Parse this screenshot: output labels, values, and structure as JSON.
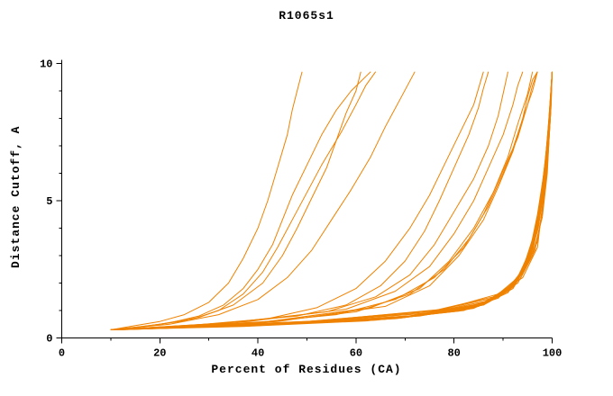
{
  "page": {
    "background": "#ffffff"
  },
  "chart_data": {
    "type": "line",
    "title": "R1065s1",
    "xlabel": "Percent of Residues (CA)",
    "ylabel": "Distance Cutoff, A",
    "xlim": [
      0,
      100
    ],
    "ylim": [
      0,
      10
    ],
    "x_major_ticks": [
      0,
      20,
      40,
      60,
      80,
      100
    ],
    "x_minor_ticks": [
      10,
      30,
      50,
      70,
      90
    ],
    "y_major_ticks": [
      0,
      5,
      10
    ],
    "y_minor_ticks": [
      1,
      2,
      3,
      4,
      6,
      7,
      8,
      9
    ],
    "grid": false,
    "legend": "none",
    "line_color": "#ef8200",
    "axis_color": "#000000",
    "series": [
      [
        [
          10,
          0.3
        ],
        [
          16,
          0.4
        ],
        [
          22,
          0.55
        ],
        [
          28,
          0.8
        ],
        [
          33,
          1.2
        ],
        [
          37,
          1.8
        ],
        [
          40,
          2.5
        ],
        [
          43,
          3.4
        ],
        [
          45,
          4.3
        ],
        [
          47,
          5.2
        ],
        [
          50,
          6.3
        ],
        [
          53,
          7.4
        ],
        [
          56,
          8.3
        ],
        [
          59,
          9.0
        ],
        [
          63,
          9.7
        ]
      ],
      [
        [
          10,
          0.3
        ],
        [
          18,
          0.45
        ],
        [
          26,
          0.65
        ],
        [
          32,
          1.0
        ],
        [
          37,
          1.6
        ],
        [
          41,
          2.4
        ],
        [
          44,
          3.3
        ],
        [
          47,
          4.3
        ],
        [
          50,
          5.3
        ],
        [
          53,
          6.3
        ],
        [
          57,
          7.5
        ],
        [
          60,
          8.5
        ],
        [
          62,
          9.2
        ],
        [
          64,
          9.7
        ]
      ],
      [
        [
          11,
          0.3
        ],
        [
          20,
          0.5
        ],
        [
          28,
          0.75
        ],
        [
          35,
          1.2
        ],
        [
          41,
          2.0
        ],
        [
          45,
          3.0
        ],
        [
          48,
          4.0
        ],
        [
          51,
          5.1
        ],
        [
          54,
          6.2
        ],
        [
          56,
          7.2
        ],
        [
          58,
          8.2
        ],
        [
          60,
          9.0
        ],
        [
          61,
          9.7
        ]
      ],
      [
        [
          10,
          0.3
        ],
        [
          22,
          0.5
        ],
        [
          32,
          0.85
        ],
        [
          40,
          1.4
        ],
        [
          46,
          2.2
        ],
        [
          51,
          3.2
        ],
        [
          55,
          4.3
        ],
        [
          59,
          5.4
        ],
        [
          63,
          6.6
        ],
        [
          66,
          7.7
        ],
        [
          69,
          8.7
        ],
        [
          72,
          9.7
        ]
      ],
      [
        [
          10,
          0.3
        ],
        [
          15,
          0.45
        ],
        [
          20,
          0.6
        ],
        [
          25,
          0.85
        ],
        [
          30,
          1.3
        ],
        [
          34,
          2.0
        ],
        [
          37,
          2.9
        ],
        [
          40,
          4.0
        ],
        [
          42,
          5.0
        ],
        [
          44,
          6.2
        ],
        [
          46,
          7.4
        ],
        [
          47,
          8.3
        ],
        [
          48,
          9.0
        ],
        [
          49,
          9.7
        ]
      ],
      [
        [
          10,
          0.3
        ],
        [
          30,
          0.5
        ],
        [
          48,
          0.8
        ],
        [
          58,
          1.2
        ],
        [
          65,
          1.9
        ],
        [
          70,
          2.8
        ],
        [
          74,
          3.9
        ],
        [
          77,
          5.0
        ],
        [
          80,
          6.2
        ],
        [
          83,
          7.4
        ],
        [
          85,
          8.4
        ],
        [
          86,
          9.1
        ],
        [
          87,
          9.7
        ]
      ],
      [
        [
          10,
          0.3
        ],
        [
          34,
          0.55
        ],
        [
          54,
          0.95
        ],
        [
          64,
          1.5
        ],
        [
          71,
          2.3
        ],
        [
          76,
          3.4
        ],
        [
          80,
          4.6
        ],
        [
          84,
          5.8
        ],
        [
          87,
          7.0
        ],
        [
          89,
          8.1
        ],
        [
          90,
          8.9
        ],
        [
          91,
          9.7
        ]
      ],
      [
        [
          11,
          0.3
        ],
        [
          38,
          0.6
        ],
        [
          58,
          1.05
        ],
        [
          68,
          1.7
        ],
        [
          75,
          2.6
        ],
        [
          80,
          3.8
        ],
        [
          84,
          5.0
        ],
        [
          87,
          6.2
        ],
        [
          90,
          7.4
        ],
        [
          92,
          8.5
        ],
        [
          93,
          9.2
        ],
        [
          94,
          9.7
        ]
      ],
      [
        [
          10,
          0.3
        ],
        [
          42,
          0.6
        ],
        [
          63,
          1.1
        ],
        [
          73,
          1.8
        ],
        [
          79,
          2.8
        ],
        [
          84,
          4.0
        ],
        [
          88,
          5.3
        ],
        [
          91,
          6.6
        ],
        [
          93,
          7.8
        ],
        [
          95,
          8.9
        ],
        [
          96,
          9.7
        ]
      ],
      [
        [
          12,
          0.3
        ],
        [
          40,
          0.55
        ],
        [
          60,
          0.95
        ],
        [
          71,
          1.6
        ],
        [
          78,
          2.5
        ],
        [
          83,
          3.6
        ],
        [
          87,
          4.8
        ],
        [
          90,
          6.0
        ],
        [
          93,
          7.3
        ],
        [
          95,
          8.5
        ],
        [
          96,
          9.2
        ],
        [
          97,
          9.7
        ]
      ],
      [
        [
          10,
          0.3
        ],
        [
          36,
          0.5
        ],
        [
          56,
          0.85
        ],
        [
          68,
          1.4
        ],
        [
          76,
          2.2
        ],
        [
          82,
          3.3
        ],
        [
          86,
          4.5
        ],
        [
          89,
          5.7
        ],
        [
          92,
          6.9
        ],
        [
          94,
          8.0
        ],
        [
          96,
          9.0
        ],
        [
          97,
          9.7
        ]
      ],
      [
        [
          10,
          0.3
        ],
        [
          26,
          0.45
        ],
        [
          42,
          0.7
        ],
        [
          52,
          1.1
        ],
        [
          60,
          1.8
        ],
        [
          66,
          2.8
        ],
        [
          71,
          4.0
        ],
        [
          75,
          5.2
        ],
        [
          78,
          6.3
        ],
        [
          81,
          7.4
        ],
        [
          84,
          8.5
        ],
        [
          86,
          9.7
        ]
      ],
      [
        [
          11,
          0.3
        ],
        [
          44,
          0.6
        ],
        [
          66,
          1.15
        ],
        [
          75,
          1.9
        ],
        [
          81,
          3.0
        ],
        [
          86,
          4.3
        ],
        [
          89,
          5.5
        ],
        [
          92,
          6.8
        ],
        [
          94,
          8.0
        ],
        [
          95,
          8.8
        ],
        [
          96,
          9.4
        ],
        [
          97,
          9.7
        ]
      ],
      [
        [
          10,
          0.3
        ],
        [
          45,
          0.5
        ],
        [
          72,
          0.8
        ],
        [
          86,
          1.2
        ],
        [
          92,
          1.8
        ],
        [
          95,
          2.7
        ],
        [
          97,
          4.0
        ],
        [
          98,
          5.5
        ],
        [
          99,
          7.2
        ],
        [
          99.6,
          8.6
        ],
        [
          100,
          9.7
        ]
      ],
      [
        [
          10,
          0.3
        ],
        [
          42,
          0.5
        ],
        [
          70,
          0.75
        ],
        [
          84,
          1.1
        ],
        [
          91,
          1.7
        ],
        [
          94,
          2.5
        ],
        [
          96,
          3.6
        ],
        [
          98,
          5.0
        ],
        [
          99,
          6.8
        ],
        [
          99.5,
          8.3
        ],
        [
          100,
          9.7
        ]
      ],
      [
        [
          11,
          0.3
        ],
        [
          48,
          0.55
        ],
        [
          74,
          0.9
        ],
        [
          87,
          1.3
        ],
        [
          93,
          2.0
        ],
        [
          96,
          3.0
        ],
        [
          98,
          4.4
        ],
        [
          99,
          6.0
        ],
        [
          99.5,
          7.7
        ],
        [
          100,
          9.7
        ]
      ],
      [
        [
          10,
          0.3
        ],
        [
          50,
          0.6
        ],
        [
          76,
          1.0
        ],
        [
          88,
          1.5
        ],
        [
          94,
          2.2
        ],
        [
          97,
          3.3
        ],
        [
          98,
          4.8
        ],
        [
          99,
          6.5
        ],
        [
          99.7,
          8.2
        ],
        [
          100,
          9.7
        ]
      ],
      [
        [
          12,
          0.3
        ],
        [
          46,
          0.5
        ],
        [
          73,
          0.8
        ],
        [
          86,
          1.2
        ],
        [
          92,
          1.9
        ],
        [
          95,
          2.8
        ],
        [
          97,
          4.1
        ],
        [
          98.5,
          5.7
        ],
        [
          99.3,
          7.4
        ],
        [
          100,
          9.7
        ]
      ],
      [
        [
          10,
          0.3
        ],
        [
          40,
          0.45
        ],
        [
          68,
          0.7
        ],
        [
          83,
          1.05
        ],
        [
          90,
          1.6
        ],
        [
          94,
          2.4
        ],
        [
          96,
          3.5
        ],
        [
          97.5,
          4.9
        ],
        [
          98.7,
          6.6
        ],
        [
          99.5,
          8.2
        ],
        [
          100,
          9.7
        ]
      ],
      [
        [
          10,
          0.3
        ],
        [
          44,
          0.5
        ],
        [
          71,
          0.8
        ],
        [
          85,
          1.2
        ],
        [
          91,
          1.8
        ],
        [
          95,
          2.7
        ],
        [
          97,
          3.9
        ],
        [
          98,
          5.3
        ],
        [
          99,
          7.0
        ],
        [
          100,
          9.7
        ]
      ],
      [
        [
          11,
          0.3
        ],
        [
          47,
          0.55
        ],
        [
          74,
          0.9
        ],
        [
          87,
          1.35
        ],
        [
          93,
          2.1
        ],
        [
          96,
          3.1
        ],
        [
          97.5,
          4.5
        ],
        [
          98.5,
          6.1
        ],
        [
          99.4,
          7.9
        ],
        [
          100,
          9.7
        ]
      ],
      [
        [
          10,
          0.3
        ],
        [
          43,
          0.5
        ],
        [
          70,
          0.78
        ],
        [
          85,
          1.18
        ],
        [
          92,
          1.9
        ],
        [
          95,
          2.9
        ],
        [
          97,
          4.2
        ],
        [
          98.3,
          5.8
        ],
        [
          99.2,
          7.5
        ],
        [
          99.8,
          8.9
        ],
        [
          100,
          9.7
        ]
      ],
      [
        [
          10,
          0.3
        ],
        [
          41,
          0.48
        ],
        [
          69,
          0.72
        ],
        [
          84,
          1.08
        ],
        [
          91,
          1.65
        ],
        [
          94.5,
          2.6
        ],
        [
          96.5,
          3.8
        ],
        [
          98,
          5.2
        ],
        [
          99,
          6.9
        ],
        [
          99.6,
          8.5
        ],
        [
          100,
          9.7
        ]
      ],
      [
        [
          10,
          0.3
        ],
        [
          39,
          0.45
        ],
        [
          66,
          0.68
        ],
        [
          82,
          1.0
        ],
        [
          89,
          1.5
        ],
        [
          93,
          2.2
        ],
        [
          95.5,
          3.2
        ],
        [
          97,
          4.5
        ],
        [
          98.5,
          6.2
        ],
        [
          99.3,
          7.9
        ],
        [
          100,
          9.7
        ]
      ],
      [
        [
          11,
          0.3
        ],
        [
          49,
          0.58
        ],
        [
          75,
          0.95
        ],
        [
          88,
          1.45
        ],
        [
          93.5,
          2.15
        ],
        [
          96.5,
          3.2
        ],
        [
          98,
          4.6
        ],
        [
          99,
          6.2
        ],
        [
          99.6,
          7.9
        ],
        [
          100,
          9.7
        ]
      ],
      [
        [
          10,
          0.3
        ],
        [
          46,
          0.52
        ],
        [
          72,
          0.82
        ],
        [
          86,
          1.25
        ],
        [
          92.5,
          1.95
        ],
        [
          95.5,
          2.9
        ],
        [
          97.3,
          4.2
        ],
        [
          98.6,
          5.9
        ],
        [
          99.4,
          7.6
        ],
        [
          100,
          9.7
        ]
      ],
      [
        [
          12,
          0.3
        ],
        [
          44,
          0.5
        ],
        [
          70,
          0.76
        ],
        [
          85,
          1.15
        ],
        [
          92,
          1.8
        ],
        [
          95,
          2.75
        ],
        [
          97,
          4.0
        ],
        [
          98.4,
          5.6
        ],
        [
          99.2,
          7.3
        ],
        [
          99.7,
          8.7
        ],
        [
          100,
          9.7
        ]
      ],
      [
        [
          10,
          0.3
        ],
        [
          38,
          0.44
        ],
        [
          64,
          0.65
        ],
        [
          81,
          0.98
        ],
        [
          89,
          1.45
        ],
        [
          93,
          2.15
        ],
        [
          95.5,
          3.1
        ],
        [
          97.2,
          4.4
        ],
        [
          98.6,
          6.0
        ],
        [
          99.4,
          7.7
        ],
        [
          100,
          9.7
        ]
      ],
      [
        [
          10,
          0.3
        ],
        [
          52,
          0.62
        ],
        [
          78,
          1.05
        ],
        [
          89,
          1.6
        ],
        [
          94,
          2.35
        ],
        [
          97,
          3.5
        ],
        [
          98.3,
          5.0
        ],
        [
          99.2,
          6.8
        ],
        [
          99.8,
          8.5
        ],
        [
          100,
          9.7
        ]
      ],
      [
        [
          11,
          0.3
        ],
        [
          45,
          0.5
        ],
        [
          72,
          0.8
        ],
        [
          86,
          1.22
        ],
        [
          92,
          1.85
        ],
        [
          95.3,
          2.8
        ],
        [
          97.2,
          4.05
        ],
        [
          98.5,
          5.6
        ],
        [
          99.3,
          7.3
        ],
        [
          100,
          9.7
        ]
      ],
      [
        [
          10,
          0.3
        ],
        [
          37,
          0.42
        ],
        [
          62,
          0.62
        ],
        [
          79,
          0.95
        ],
        [
          88,
          1.4
        ],
        [
          92.5,
          2.05
        ],
        [
          95,
          2.95
        ],
        [
          97,
          4.2
        ],
        [
          98.5,
          5.9
        ],
        [
          99.3,
          7.6
        ],
        [
          99.8,
          8.9
        ],
        [
          100,
          9.7
        ]
      ]
    ]
  }
}
